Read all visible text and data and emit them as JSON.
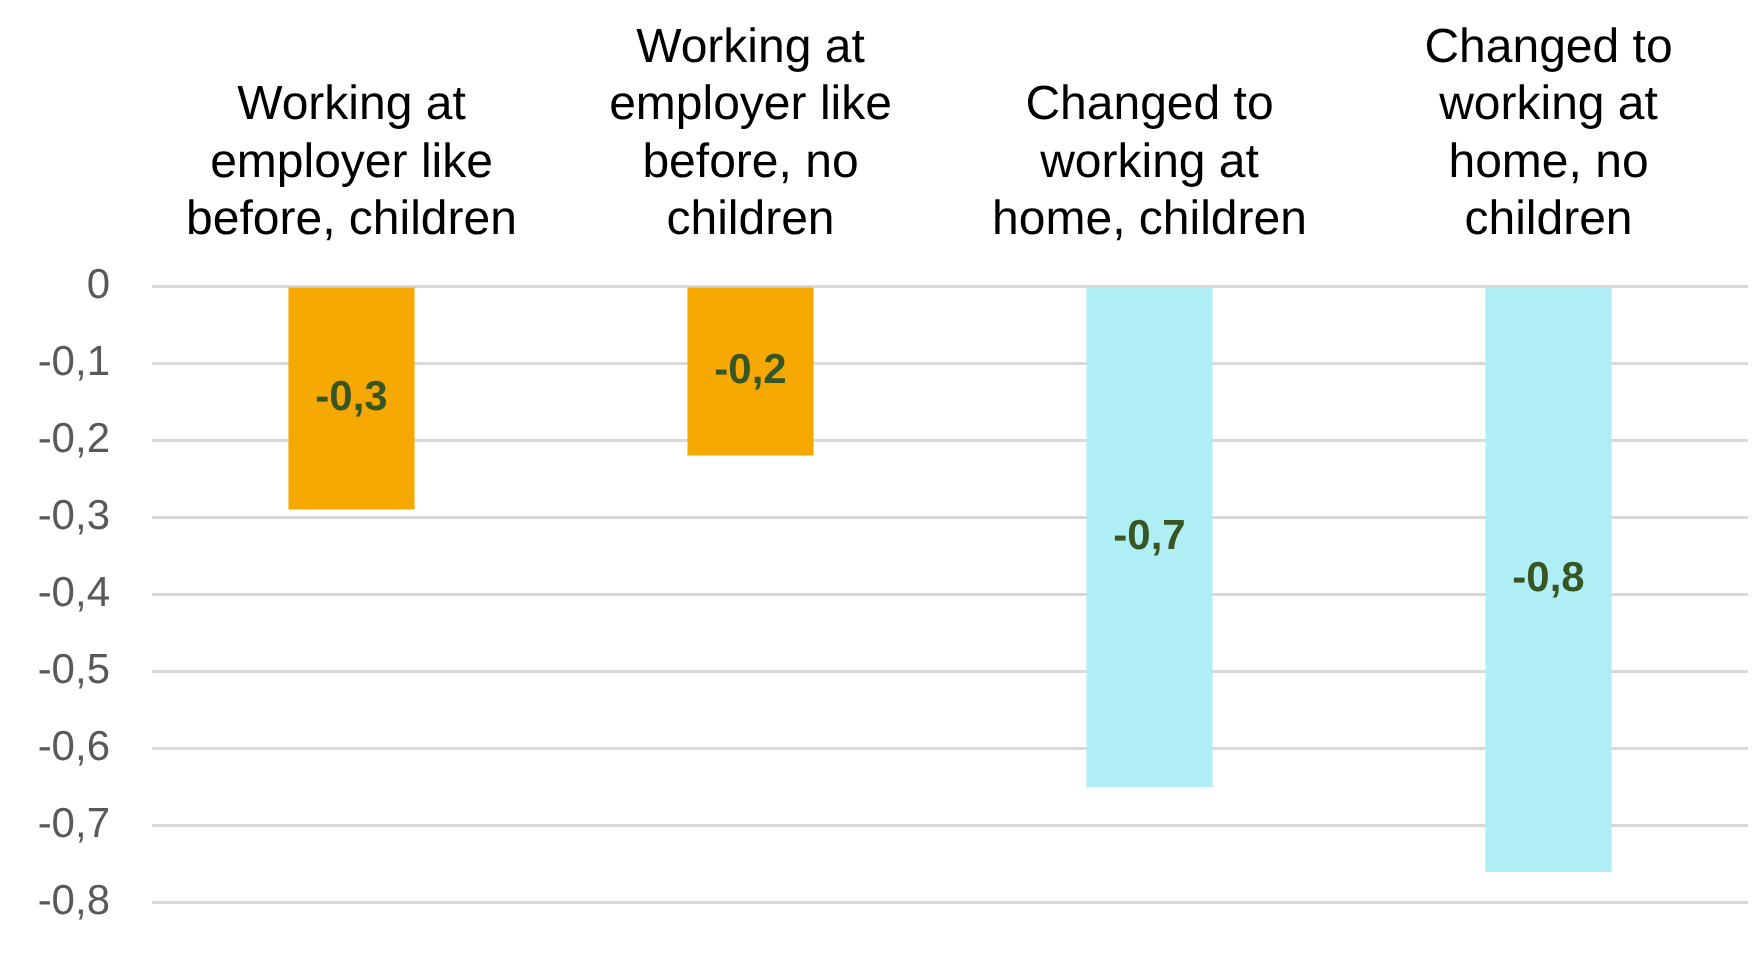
{
  "chart_data": {
    "type": "bar",
    "categories": [
      "Working at employer like before, children",
      "Working at employer like before, no children",
      "Changed to working at home, children",
      "Changed to working at home, no children"
    ],
    "values": [
      -0.29,
      -0.22,
      -0.65,
      -0.76
    ],
    "colors": [
      "#f5a800",
      "#f5a800",
      "#b0eef6",
      "#b0eef6"
    ],
    "value_labels": [
      "-0,3",
      "-0,2",
      "-0,7",
      "-0,8"
    ],
    "ylim": [
      -0.8,
      0
    ],
    "yticks": [
      0,
      {
        "value": -0.1,
        "label": "-0,1"
      },
      {
        "value": -0.2,
        "label": "-0,2"
      },
      {
        "value": -0.3,
        "label": "-0,3"
      },
      {
        "value": -0.4,
        "label": "-0,4"
      },
      {
        "value": -0.5,
        "label": "-0,5"
      },
      {
        "value": -0.6,
        "label": "-0,6"
      },
      {
        "value": -0.7,
        "label": "-0,7"
      },
      {
        "value": -0.8,
        "label": "-0,8"
      }
    ],
    "grid": "y"
  }
}
